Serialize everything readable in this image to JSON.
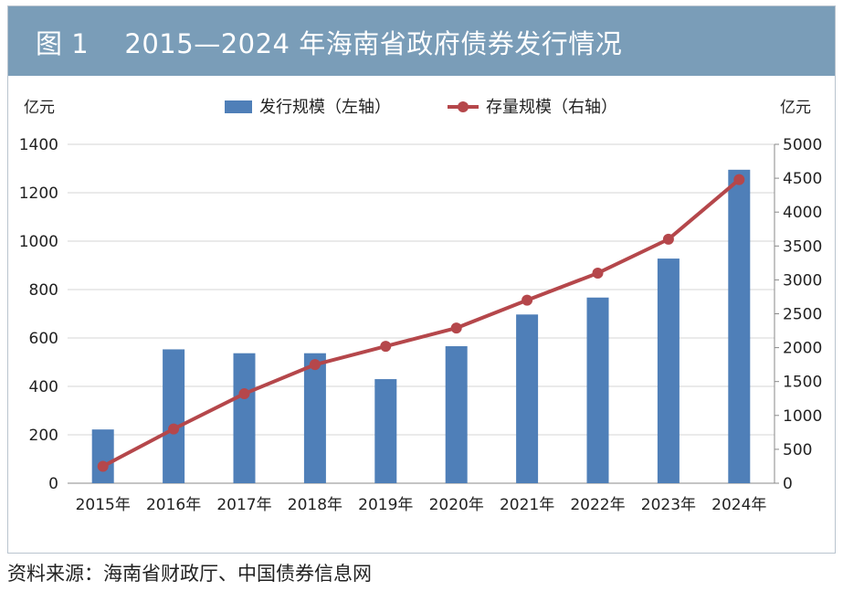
{
  "chart_data": {
    "type": "bar",
    "title": "图 1　 2015—2024 年海南省政府债券发行情况",
    "categories": [
      "2015年",
      "2016年",
      "2017年",
      "2018年",
      "2019年",
      "2020年",
      "2021年",
      "2022年",
      "2023年",
      "2024年"
    ],
    "series": [
      {
        "name": "发行规模（左轴）",
        "type": "bar",
        "axis": "left",
        "values": [
          222,
          553,
          537,
          537,
          430,
          566,
          697,
          767,
          928,
          1295
        ]
      },
      {
        "name": "存量规模（右轴）",
        "type": "line",
        "axis": "right",
        "values": [
          250,
          800,
          1320,
          1750,
          2020,
          2290,
          2700,
          3100,
          3600,
          4480
        ]
      }
    ],
    "left_axis": {
      "unit": "亿元",
      "ylim": [
        0,
        1400
      ],
      "ticks": [
        0,
        200,
        400,
        600,
        800,
        1000,
        1200,
        1400
      ]
    },
    "right_axis": {
      "unit": "亿元",
      "ylim": [
        0,
        5000
      ],
      "ticks": [
        0,
        500,
        1000,
        1500,
        2000,
        2500,
        3000,
        3500,
        4000,
        4500,
        5000
      ]
    },
    "grid": true,
    "legend_position": "top-center",
    "colors": {
      "bar": "#4f7fb8",
      "line": "#b5474b",
      "title_bg": "#7a9db8"
    }
  },
  "source": "资料来源：海南省财政厅、中国债券信息网"
}
